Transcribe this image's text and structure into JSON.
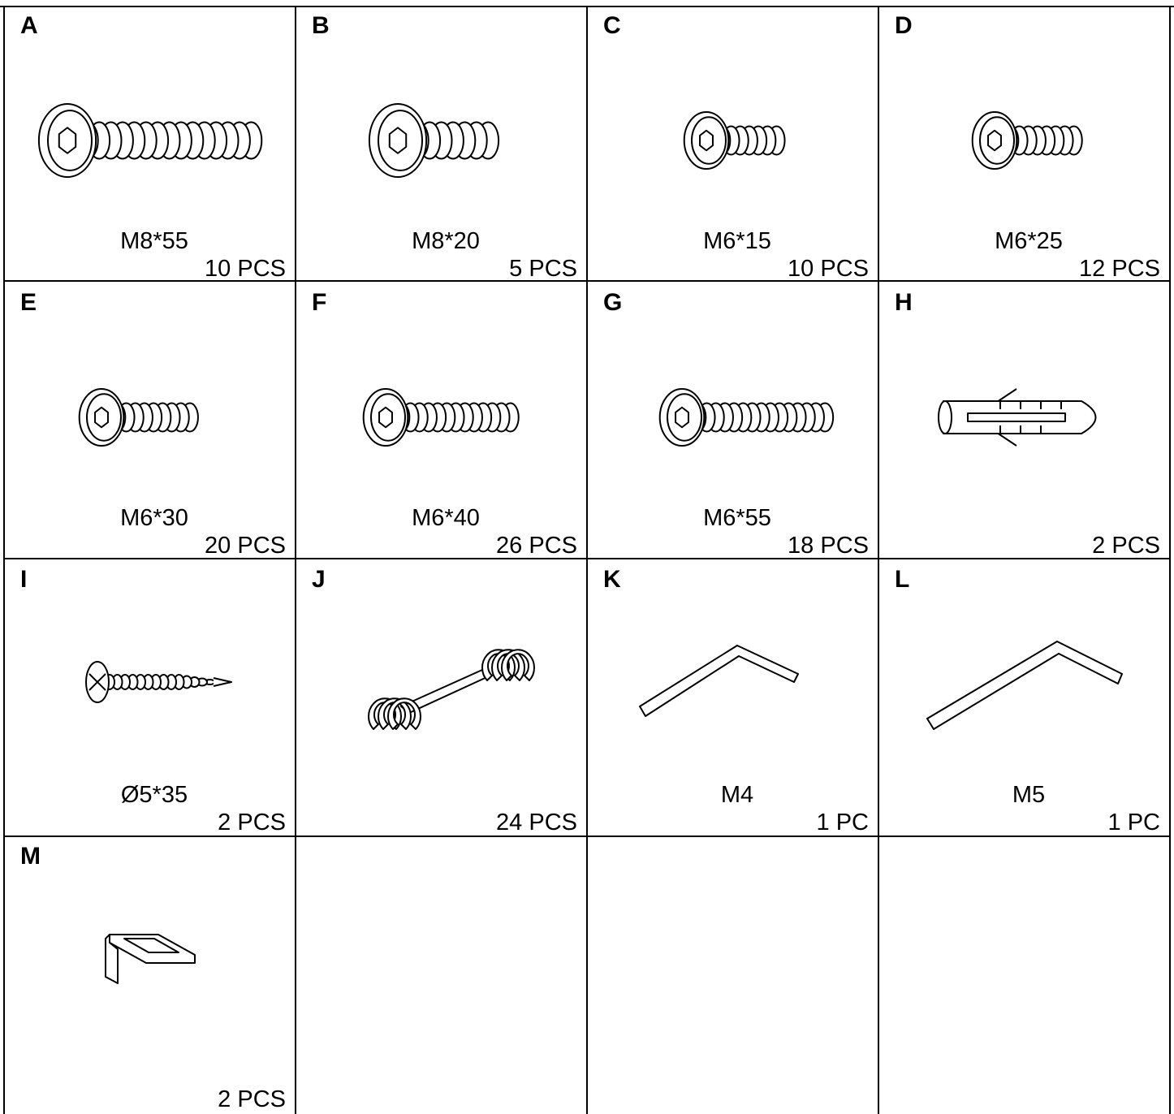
{
  "items": [
    {
      "letter": "A",
      "size": "M8*55",
      "quantity": "10 PCS"
    },
    {
      "letter": "B",
      "size": "M8*20",
      "quantity": "5 PCS"
    },
    {
      "letter": "C",
      "size": "M6*15",
      "quantity": "10 PCS"
    },
    {
      "letter": "D",
      "size": "M6*25",
      "quantity": "12 PCS"
    },
    {
      "letter": "E",
      "size": "M6*30",
      "quantity": "20 PCS"
    },
    {
      "letter": "F",
      "size": "M6*40",
      "quantity": "26 PCS"
    },
    {
      "letter": "G",
      "size": "M6*55",
      "quantity": "18 PCS"
    },
    {
      "letter": "H",
      "quantity": "2 PCS"
    },
    {
      "letter": "I",
      "size": "Ø5*35",
      "quantity": "2 PCS"
    },
    {
      "letter": "J",
      "quantity": "24 PCS"
    },
    {
      "letter": "K",
      "size": "M4",
      "quantity": "1 PC"
    },
    {
      "letter": "L",
      "size": "M5",
      "quantity": "1 PC"
    },
    {
      "letter": "M",
      "quantity": "2 PCS"
    }
  ]
}
